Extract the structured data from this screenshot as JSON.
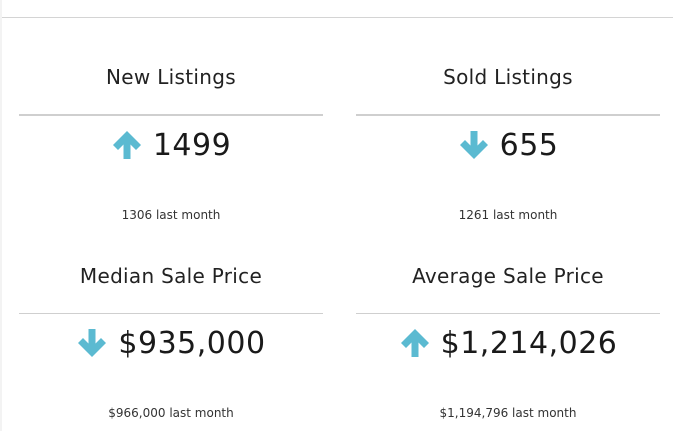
{
  "accent_color": "#5bbad1",
  "cards": [
    {
      "title": "New Listings",
      "trend_icon": "arrow-up-icon",
      "value": "1499",
      "last_month": "1306 last month"
    },
    {
      "title": "Sold Listings",
      "trend_icon": "arrow-down-icon",
      "value": "655",
      "last_month": "1261 last month"
    },
    {
      "title": "Median Sale Price",
      "trend_icon": "arrow-down-icon",
      "value": "$935,000",
      "last_month": "$966,000 last month"
    },
    {
      "title": "Average Sale Price",
      "trend_icon": "arrow-up-icon",
      "value": "$1,214,026",
      "last_month": "$1,194,796 last month"
    }
  ]
}
